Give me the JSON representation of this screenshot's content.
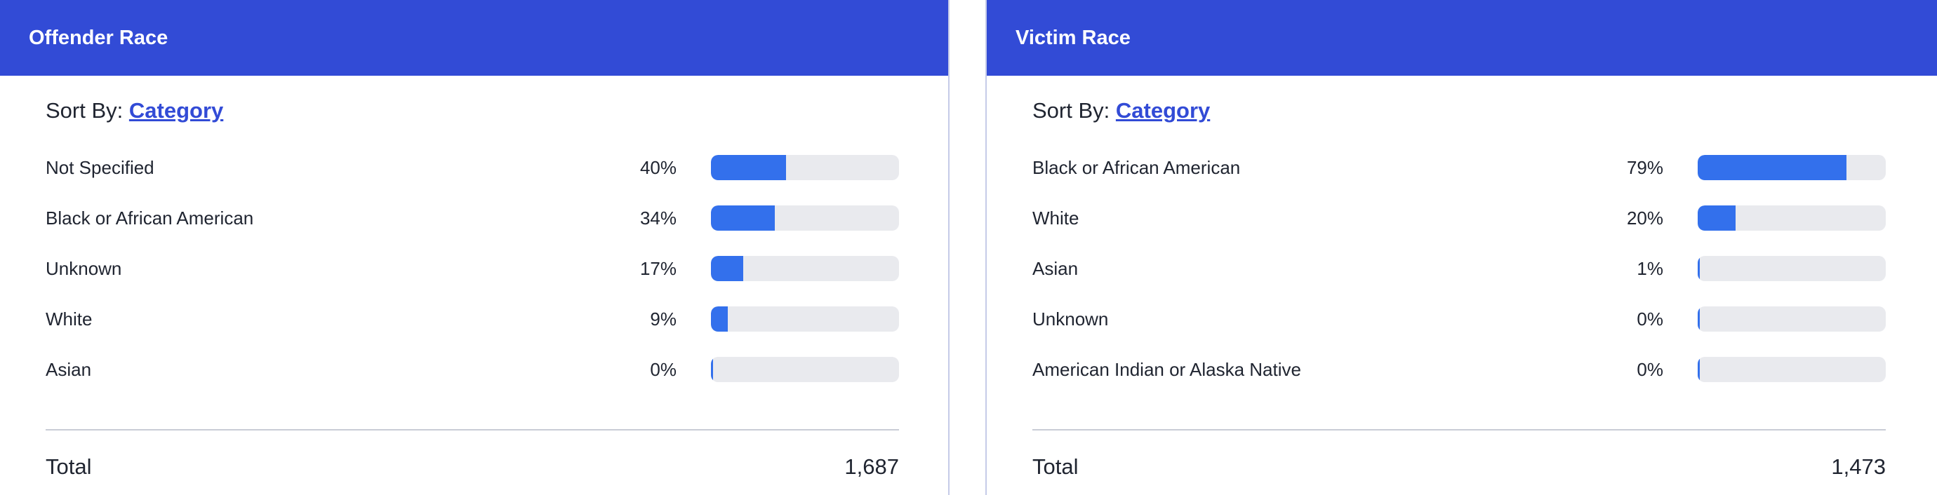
{
  "panels": [
    {
      "title": "Offender Race",
      "sort_label": "Sort By:",
      "sort_value": "Category",
      "total_label": "Total",
      "total_value": "1,687",
      "chart_data": {
        "type": "bar",
        "orientation": "horizontal",
        "categories": [
          "Not Specified",
          "Black or African American",
          "Unknown",
          "White",
          "Asian"
        ],
        "values": [
          40,
          34,
          17,
          9,
          0
        ],
        "value_labels": [
          "40%",
          "34%",
          "17%",
          "9%",
          "0%"
        ],
        "unit": "%",
        "xlim": [
          0,
          100
        ],
        "bar_color": "#3370ec",
        "track_color": "#e9eaee"
      }
    },
    {
      "title": "Victim Race",
      "sort_label": "Sort By:",
      "sort_value": "Category",
      "total_label": "Total",
      "total_value": "1,473",
      "chart_data": {
        "type": "bar",
        "orientation": "horizontal",
        "categories": [
          "Black or African American",
          "White",
          "Asian",
          "Unknown",
          "American Indian or Alaska Native"
        ],
        "values": [
          79,
          20,
          1,
          0,
          0
        ],
        "value_labels": [
          "79%",
          "20%",
          "1%",
          "0%",
          "0%"
        ],
        "unit": "%",
        "xlim": [
          0,
          100
        ],
        "bar_color": "#3370ec",
        "track_color": "#e9eaee"
      }
    }
  ],
  "colors": {
    "header_bg": "#324bd6",
    "link": "#324bd6",
    "bar": "#3370ec",
    "track": "#e9eaee"
  }
}
